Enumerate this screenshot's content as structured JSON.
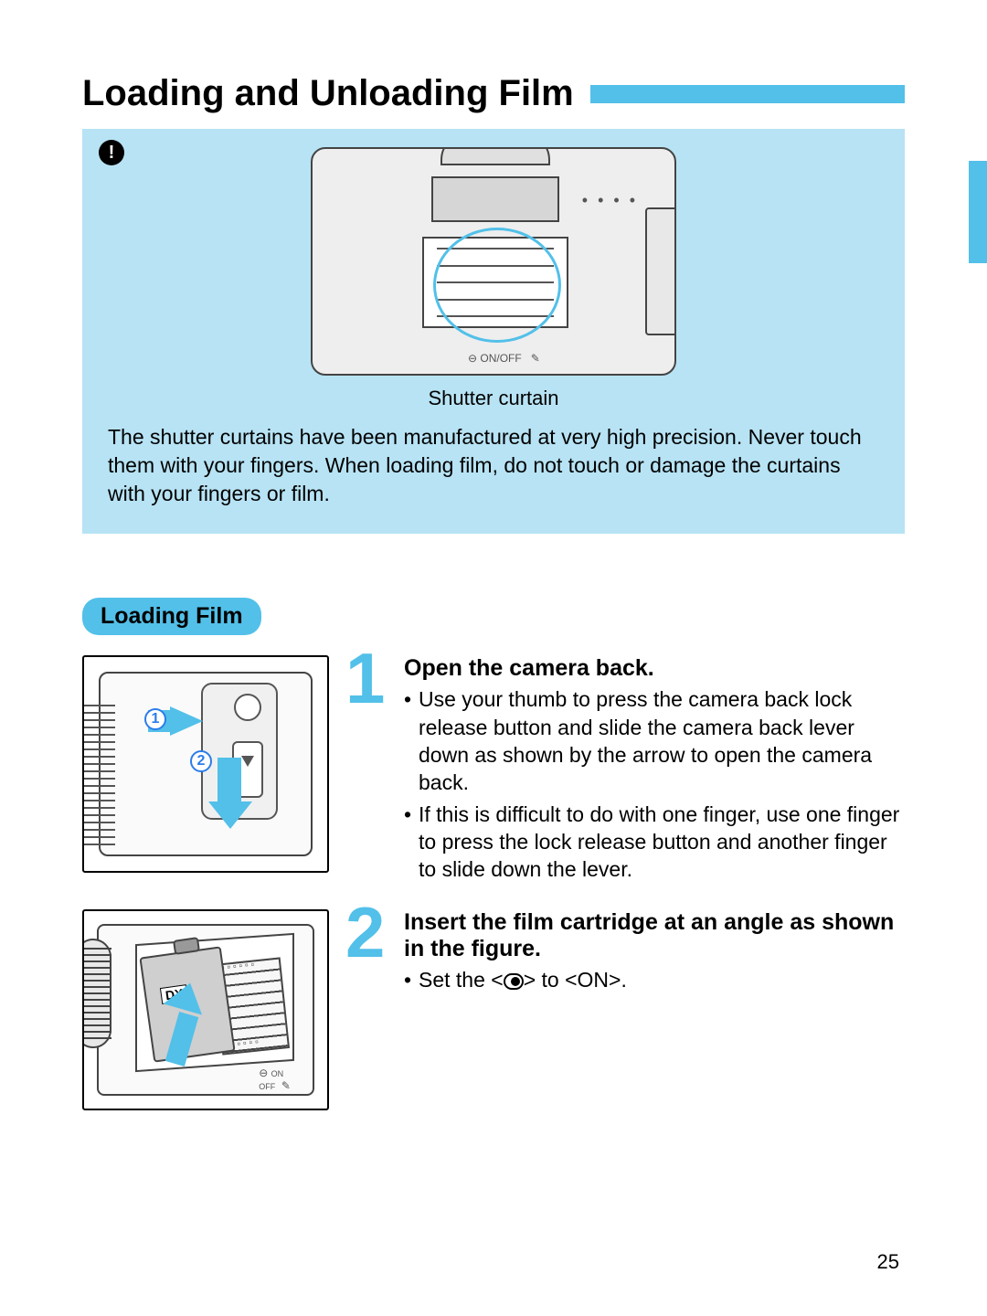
{
  "colors": {
    "accent": "#52c0e9",
    "caution_bg": "#b7e3f4",
    "step_number": "#52c0e9"
  },
  "title": "Loading and Unloading Film",
  "caution": {
    "icon_glyph": "!",
    "figure_caption": "Shutter curtain",
    "body": "The shutter curtains have been manufactured at very high precision. Never touch them with your fingers. When loading film, do not touch or damage the curtains with your fingers or film."
  },
  "section_label": "Loading Film",
  "steps": [
    {
      "number": "1",
      "title": "Open the camera back.",
      "fig_markers": {
        "m1": "1",
        "m2": "2"
      },
      "bullets": [
        "Use your thumb to press the camera back lock release button and slide the camera back lever down as shown by the arrow to open the camera back.",
        "If this is difficult to do with one finger, use one finger to press the lock release button and another finger to slide down the lever."
      ]
    },
    {
      "number": "2",
      "title": "Insert the film cartridge at an angle as shown in the figure.",
      "fig_text": {
        "dx": "DX",
        "sw": "ON\nOFF"
      },
      "bullet_prefix": "Set the <",
      "bullet_mid": "> to <",
      "bullet_on": "ON",
      "bullet_suffix": ">."
    }
  ],
  "page_number": "25"
}
